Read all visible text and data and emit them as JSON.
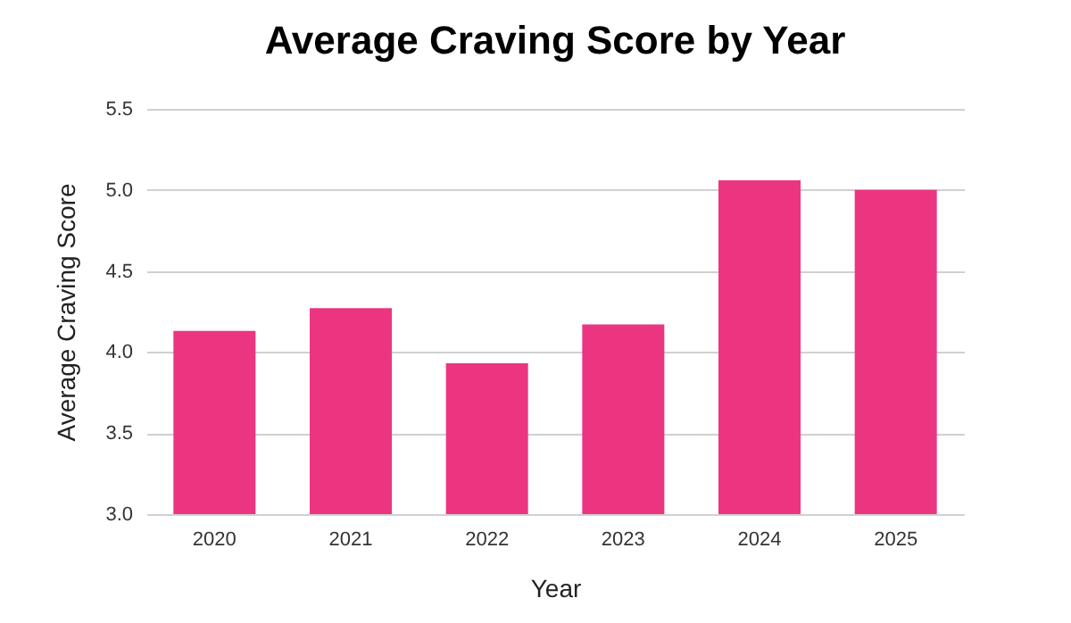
{
  "chart_data": {
    "type": "bar",
    "title": "Average Craving Score by Year",
    "xlabel": "Year",
    "ylabel": "Average Craving Score",
    "categories": [
      "2020",
      "2021",
      "2022",
      "2023",
      "2024",
      "2025"
    ],
    "values": [
      4.13,
      4.27,
      3.93,
      4.17,
      5.06,
      5.0
    ],
    "color": "#ec3581",
    "ylim": [
      3.0,
      5.5
    ],
    "yticks": [
      {
        "value": 3.0,
        "label": "3.0"
      },
      {
        "value": 3.5,
        "label": "3.5"
      },
      {
        "value": 4.0,
        "label": "4.0"
      },
      {
        "value": 4.5,
        "label": "4.5"
      },
      {
        "value": 5.0,
        "label": "5.0"
      },
      {
        "value": 5.5,
        "label": "5.5"
      }
    ],
    "grid": "y"
  }
}
